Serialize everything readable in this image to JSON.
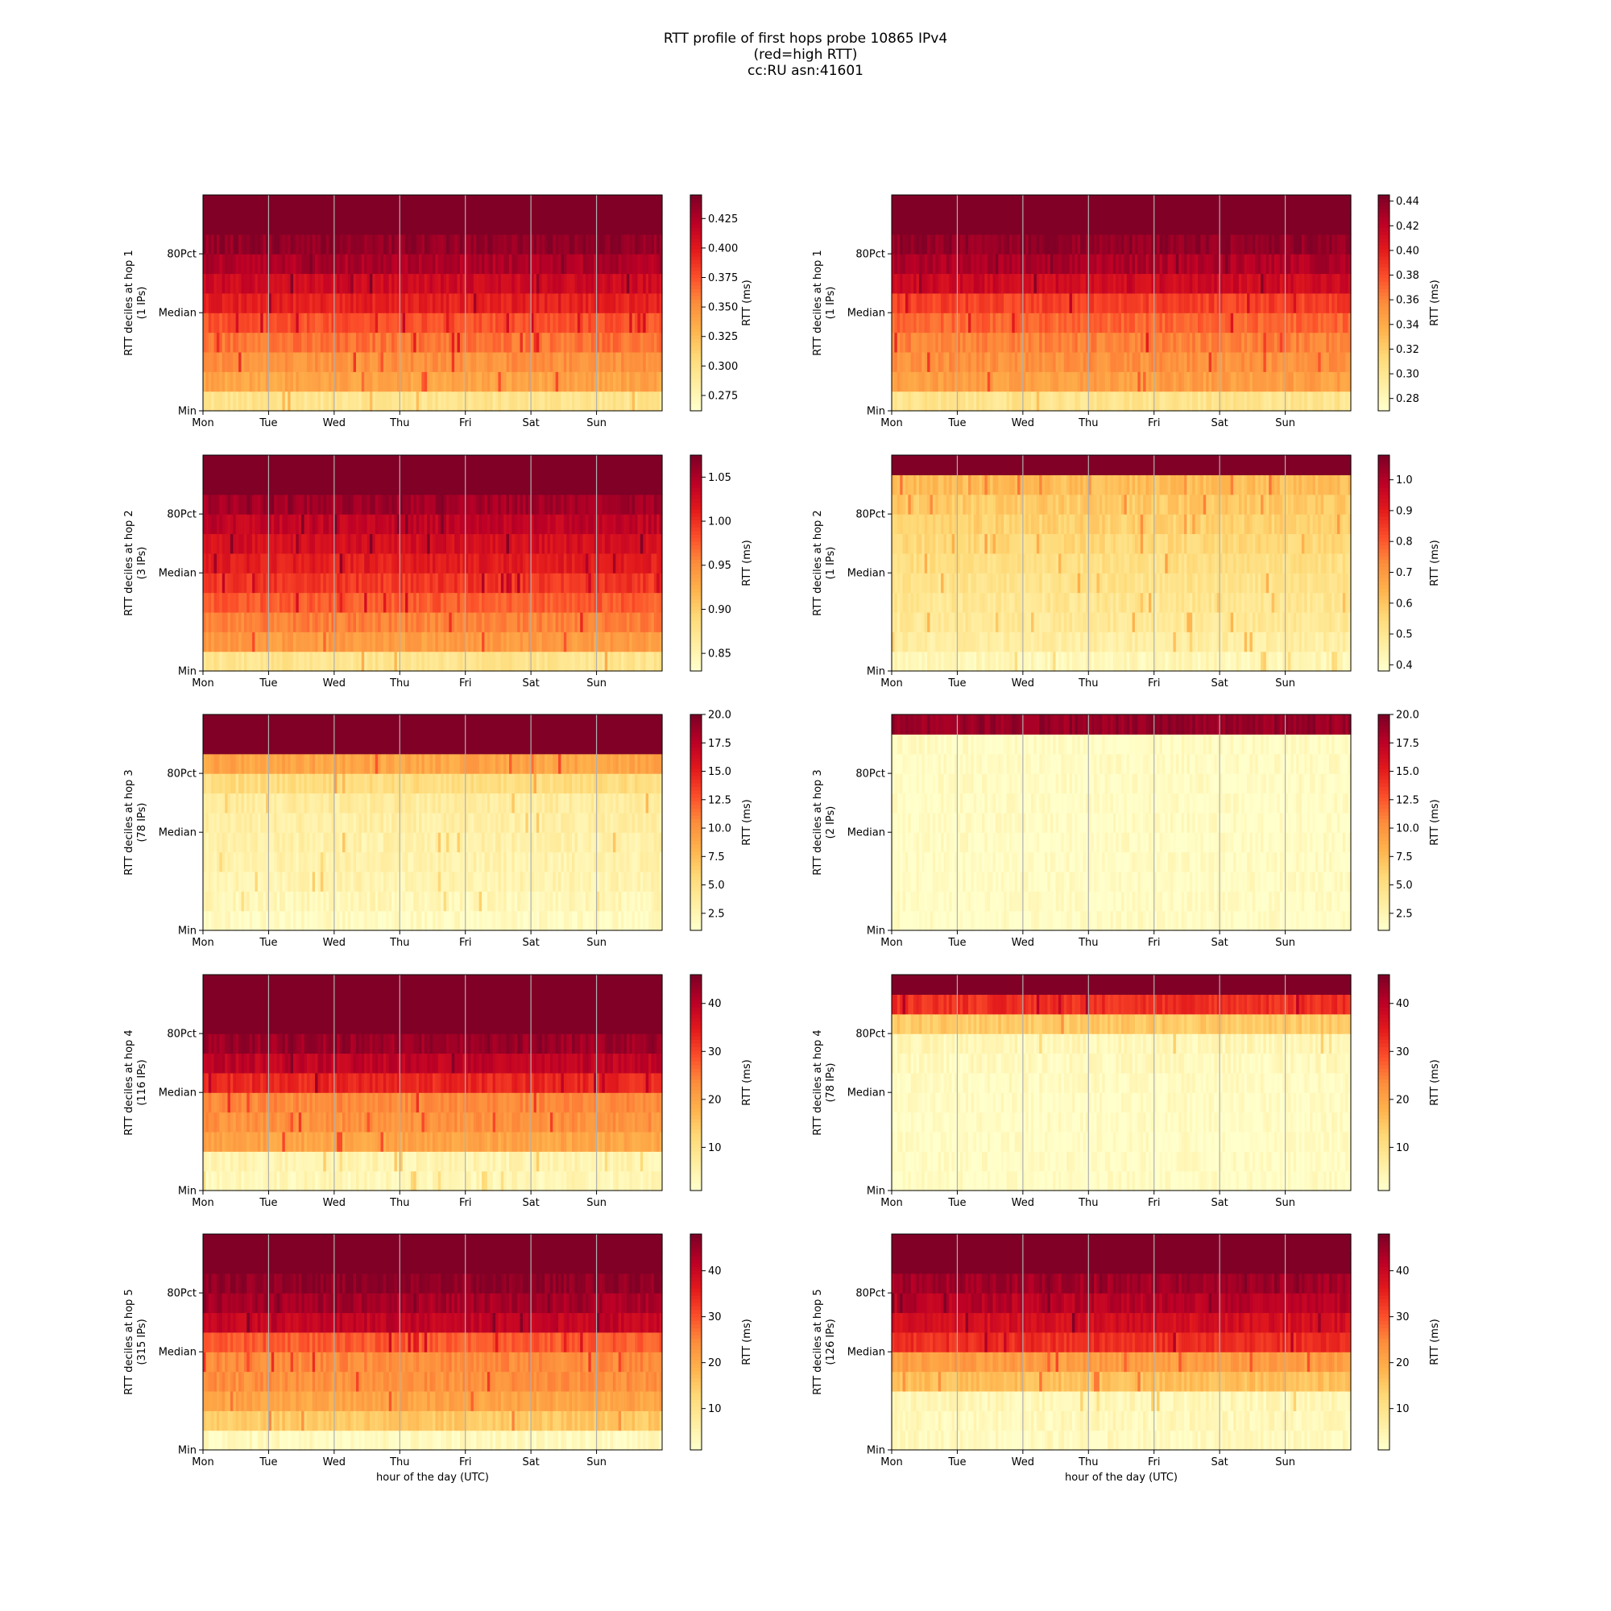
{
  "figure": {
    "title_lines": [
      "RTT profile of first hops probe 10865 IPv4",
      "(red=high RTT)",
      "cc:RU asn:41601"
    ]
  },
  "chart_data": [
    {
      "type": "heatmap",
      "column": "left",
      "hop": 1,
      "ylabel": [
        "RTT deciles at hop 1",
        "(1 IPs)"
      ],
      "xticks": [
        "Mon",
        "Tue",
        "Wed",
        "Thu",
        "Fri",
        "Sat",
        "Sun"
      ],
      "yticks": [
        "Min",
        "Median",
        "80Pct"
      ],
      "colorbar": {
        "label": "RTT (ms)",
        "vmin": 0.262,
        "vmax": 0.445,
        "ticks": [
          "0.275",
          "0.300",
          "0.325",
          "0.350",
          "0.375",
          "0.400",
          "0.425"
        ]
      },
      "decile_profile": [
        0.18,
        0.42,
        0.48,
        0.55,
        0.62,
        0.74,
        0.82,
        0.9,
        0.96,
        1.0,
        1.0
      ],
      "xlabel": ""
    },
    {
      "type": "heatmap",
      "column": "right",
      "hop": 1,
      "ylabel": [
        "RTT deciles at hop 1",
        "(1 IPs)"
      ],
      "xticks": [
        "Mon",
        "Tue",
        "Wed",
        "Thu",
        "Fri",
        "Sat",
        "Sun"
      ],
      "yticks": [
        "Min",
        "Median",
        "80Pct"
      ],
      "colorbar": {
        "label": "RTT (ms)",
        "vmin": 0.27,
        "vmax": 0.445,
        "ticks": [
          "0.28",
          "0.30",
          "0.32",
          "0.34",
          "0.36",
          "0.38",
          "0.40",
          "0.42",
          "0.44"
        ]
      },
      "decile_profile": [
        0.18,
        0.44,
        0.48,
        0.52,
        0.58,
        0.66,
        0.82,
        0.9,
        0.96,
        1.0,
        1.0
      ],
      "xlabel": ""
    },
    {
      "type": "heatmap",
      "column": "left",
      "hop": 2,
      "ylabel": [
        "RTT deciles at hop 2",
        "(3 IPs)"
      ],
      "xticks": [
        "Mon",
        "Tue",
        "Wed",
        "Thu",
        "Fri",
        "Sat",
        "Sun"
      ],
      "yticks": [
        "Min",
        "Median",
        "80Pct"
      ],
      "colorbar": {
        "label": "RTT (ms)",
        "vmin": 0.83,
        "vmax": 1.075,
        "ticks": [
          "0.85",
          "0.90",
          "0.95",
          "1.00",
          "1.05"
        ]
      },
      "decile_profile": [
        0.18,
        0.45,
        0.52,
        0.6,
        0.68,
        0.75,
        0.8,
        0.86,
        0.93,
        1.0,
        1.0
      ],
      "xlabel": ""
    },
    {
      "type": "heatmap",
      "column": "right",
      "hop": 2,
      "ylabel": [
        "RTT deciles at hop 2",
        "(1 IPs)"
      ],
      "xticks": [
        "Mon",
        "Tue",
        "Wed",
        "Thu",
        "Fri",
        "Sat",
        "Sun"
      ],
      "yticks": [
        "Min",
        "Median",
        "80Pct"
      ],
      "colorbar": {
        "label": "RTT (ms)",
        "vmin": 0.38,
        "vmax": 1.08,
        "ticks": [
          "0.4",
          "0.5",
          "0.6",
          "0.7",
          "0.8",
          "0.9",
          "1.0"
        ]
      },
      "decile_profile": [
        0.06,
        0.12,
        0.15,
        0.17,
        0.19,
        0.21,
        0.24,
        0.27,
        0.3,
        0.34,
        1.0
      ],
      "xlabel": ""
    },
    {
      "type": "heatmap",
      "column": "left",
      "hop": 3,
      "ylabel": [
        "RTT deciles at hop 3",
        "(78 IPs)"
      ],
      "xticks": [
        "Mon",
        "Tue",
        "Wed",
        "Thu",
        "Fri",
        "Sat",
        "Sun"
      ],
      "yticks": [
        "Min",
        "Median",
        "80Pct"
      ],
      "colorbar": {
        "label": "RTT (ms)",
        "vmin": 1.0,
        "vmax": 20.0,
        "ticks": [
          "2.5",
          "5.0",
          "7.5",
          "10.0",
          "12.5",
          "15.0",
          "17.5",
          "20.0"
        ]
      },
      "decile_profile": [
        0.03,
        0.06,
        0.08,
        0.09,
        0.1,
        0.11,
        0.13,
        0.22,
        0.42,
        1.0,
        1.0
      ],
      "xlabel": ""
    },
    {
      "type": "heatmap",
      "column": "right",
      "hop": 3,
      "ylabel": [
        "RTT deciles at hop 3",
        "(2 IPs)"
      ],
      "xticks": [
        "Mon",
        "Tue",
        "Wed",
        "Thu",
        "Fri",
        "Sat",
        "Sun"
      ],
      "yticks": [
        "Min",
        "Median",
        "80Pct"
      ],
      "colorbar": {
        "label": "RTT (ms)",
        "vmin": 1.0,
        "vmax": 20.0,
        "ticks": [
          "2.5",
          "5.0",
          "7.5",
          "10.0",
          "12.5",
          "15.0",
          "17.5",
          "20.0"
        ]
      },
      "decile_profile": [
        0.02,
        0.02,
        0.02,
        0.02,
        0.02,
        0.02,
        0.02,
        0.02,
        0.02,
        0.02,
        0.95
      ],
      "xlabel": ""
    },
    {
      "type": "heatmap",
      "column": "left",
      "hop": 4,
      "ylabel": [
        "RTT deciles at hop 4",
        "(116 IPs)"
      ],
      "xticks": [
        "Mon",
        "Tue",
        "Wed",
        "Thu",
        "Fri",
        "Sat",
        "Sun"
      ],
      "yticks": [
        "Min",
        "Median",
        "80Pct"
      ],
      "colorbar": {
        "label": "RTT (ms)",
        "vmin": 1.0,
        "vmax": 46.0,
        "ticks": [
          "10",
          "20",
          "30",
          "40"
        ]
      },
      "decile_profile": [
        0.06,
        0.08,
        0.42,
        0.48,
        0.5,
        0.72,
        0.86,
        0.94,
        1.0,
        1.0,
        1.0
      ],
      "xlabel": ""
    },
    {
      "type": "heatmap",
      "column": "right",
      "hop": 4,
      "ylabel": [
        "RTT deciles at hop 4",
        "(78 IPs)"
      ],
      "xticks": [
        "Mon",
        "Tue",
        "Wed",
        "Thu",
        "Fri",
        "Sat",
        "Sun"
      ],
      "yticks": [
        "Min",
        "Median",
        "80Pct"
      ],
      "colorbar": {
        "label": "RTT (ms)",
        "vmin": 1.0,
        "vmax": 46.0,
        "ticks": [
          "10",
          "20",
          "30",
          "40"
        ]
      },
      "decile_profile": [
        0.02,
        0.02,
        0.02,
        0.02,
        0.02,
        0.03,
        0.04,
        0.06,
        0.3,
        0.7,
        1.0
      ],
      "xlabel": ""
    },
    {
      "type": "heatmap",
      "column": "left",
      "hop": 5,
      "ylabel": [
        "RTT deciles at hop 5",
        "(315 IPs)"
      ],
      "xticks": [
        "Mon",
        "Tue",
        "Wed",
        "Thu",
        "Fri",
        "Sat",
        "Sun"
      ],
      "yticks": [
        "Min",
        "Median",
        "80Pct"
      ],
      "colorbar": {
        "label": "RTT (ms)",
        "vmin": 1.0,
        "vmax": 48.0,
        "ticks": [
          "10",
          "20",
          "30",
          "40"
        ]
      },
      "decile_profile": [
        0.04,
        0.3,
        0.42,
        0.48,
        0.5,
        0.6,
        0.85,
        0.92,
        0.97,
        1.0,
        1.0
      ],
      "xlabel": "hour of the day (UTC)"
    },
    {
      "type": "heatmap",
      "column": "right",
      "hop": 5,
      "ylabel": [
        "RTT deciles at hop 5",
        "(126 IPs)"
      ],
      "xticks": [
        "Mon",
        "Tue",
        "Wed",
        "Thu",
        "Fri",
        "Sat",
        "Sun"
      ],
      "yticks": [
        "Min",
        "Median",
        "80Pct"
      ],
      "colorbar": {
        "label": "RTT (ms)",
        "vmin": 1.0,
        "vmax": 48.0,
        "ticks": [
          "10",
          "20",
          "30",
          "40"
        ]
      },
      "decile_profile": [
        0.04,
        0.05,
        0.06,
        0.33,
        0.45,
        0.7,
        0.8,
        0.88,
        0.93,
        1.0,
        1.0
      ],
      "xlabel": "hour of the day (UTC)"
    }
  ]
}
